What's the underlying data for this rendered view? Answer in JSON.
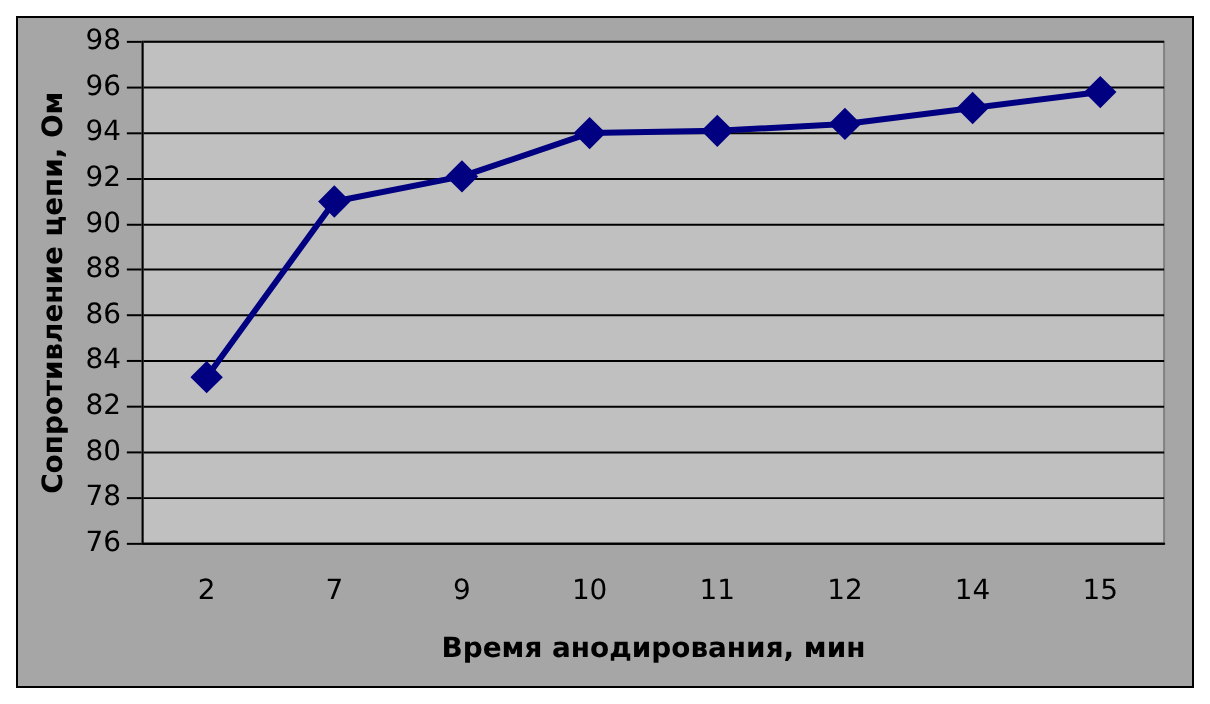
{
  "chart_data": {
    "type": "line",
    "xlabel": "Время анодирования, мин",
    "ylabel": "Сопротивление цепи, Ом",
    "categories": [
      "2",
      "7",
      "9",
      "10",
      "11",
      "12",
      "14",
      "15"
    ],
    "series": [
      {
        "color": "#000080",
        "values": [
          83.3,
          91.0,
          92.1,
          94.0,
          94.1,
          94.4,
          95.1,
          95.8
        ]
      }
    ],
    "ylim": [
      76,
      98
    ],
    "yticks": [
      76,
      78,
      80,
      82,
      84,
      86,
      88,
      90,
      92,
      94,
      96,
      98
    ],
    "grid": "y",
    "legend": false,
    "marker": "diamond",
    "line_style": "solid"
  }
}
